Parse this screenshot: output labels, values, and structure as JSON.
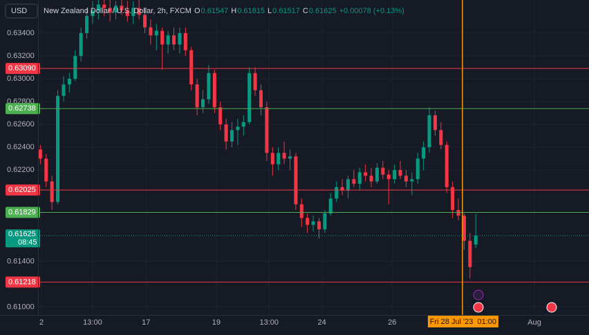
{
  "header": {
    "symbol_button": "USD",
    "title": "New Zealand Dollar / U.S. Dollar, 2h, FXCM",
    "fields": [
      {
        "label": "O",
        "value": 0.61547
      },
      {
        "label": "H",
        "value": 0.61815
      },
      {
        "label": "L",
        "value": 0.61517
      },
      {
        "label": "C",
        "value": 0.61625
      }
    ],
    "change": "+0.00078 (+0.13%)"
  },
  "chart_data": {
    "type": "candlestick",
    "up_color": "#089981",
    "down_color": "#f23645",
    "grid": true,
    "x": [
      0,
      1,
      2,
      3,
      4,
      5,
      6,
      7,
      8,
      9,
      10,
      11,
      12,
      13,
      14,
      15,
      16,
      17,
      18,
      19,
      20,
      21,
      22,
      23,
      24,
      25,
      26,
      27,
      28,
      29,
      30,
      31,
      32,
      33,
      34,
      35,
      36,
      37,
      38,
      39,
      40,
      41,
      42,
      43,
      44,
      45,
      46,
      47,
      48,
      49,
      50,
      51,
      52,
      53,
      54,
      55,
      56,
      57,
      58,
      59,
      60,
      61,
      62,
      63,
      64,
      65,
      66,
      67,
      68,
      69,
      70,
      71,
      72,
      73,
      74,
      75
    ],
    "open": [
      0.6238,
      0.623,
      0.621,
      0.6192,
      0.6285,
      0.6295,
      0.63,
      0.632,
      0.634,
      0.6355,
      0.636,
      0.6365,
      0.6362,
      0.6358,
      0.6364,
      0.636,
      0.6355,
      0.6362,
      0.6356,
      0.6345,
      0.6338,
      0.6342,
      0.633,
      0.6338,
      0.633,
      0.634,
      0.6325,
      0.6295,
      0.6275,
      0.6282,
      0.6305,
      0.6275,
      0.626,
      0.6245,
      0.6255,
      0.6258,
      0.6262,
      0.6305,
      0.629,
      0.6275,
      0.6235,
      0.6225,
      0.6235,
      0.623,
      0.6232,
      0.619,
      0.6178,
      0.6172,
      0.6175,
      0.6168,
      0.6182,
      0.6195,
      0.6205,
      0.6202,
      0.6212,
      0.6208,
      0.6218,
      0.6215,
      0.621,
      0.6222,
      0.6216,
      0.6212,
      0.622,
      0.6215,
      0.621,
      0.6212,
      0.623,
      0.624,
      0.6268,
      0.6255,
      0.6242,
      0.6205,
      0.6185,
      0.618,
      0.6158,
      0.61547
    ],
    "high": [
      0.6242,
      0.6234,
      0.6215,
      0.629,
      0.6302,
      0.6305,
      0.6325,
      0.6345,
      0.6362,
      0.6368,
      0.637,
      0.6372,
      0.637,
      0.6368,
      0.637,
      0.6368,
      0.6368,
      0.637,
      0.6362,
      0.6352,
      0.6348,
      0.6345,
      0.6342,
      0.6345,
      0.6345,
      0.6345,
      0.6328,
      0.63,
      0.629,
      0.6312,
      0.6308,
      0.628,
      0.6265,
      0.6262,
      0.6265,
      0.6268,
      0.631,
      0.631,
      0.6295,
      0.628,
      0.624,
      0.624,
      0.6245,
      0.6238,
      0.6235,
      0.6195,
      0.6182,
      0.618,
      0.6178,
      0.6185,
      0.62,
      0.621,
      0.6212,
      0.6215,
      0.622,
      0.6222,
      0.6225,
      0.6222,
      0.6226,
      0.6228,
      0.622,
      0.6225,
      0.6228,
      0.622,
      0.6218,
      0.6235,
      0.6245,
      0.6275,
      0.6272,
      0.6262,
      0.6245,
      0.621,
      0.6195,
      0.6182,
      0.6165,
      0.61815
    ],
    "low": [
      0.6225,
      0.6205,
      0.6185,
      0.619,
      0.628,
      0.6288,
      0.6298,
      0.6315,
      0.6335,
      0.6348,
      0.6352,
      0.6355,
      0.635,
      0.6352,
      0.6356,
      0.635,
      0.6348,
      0.6352,
      0.634,
      0.633,
      0.6325,
      0.6308,
      0.6322,
      0.6325,
      0.6322,
      0.632,
      0.629,
      0.6268,
      0.627,
      0.6278,
      0.627,
      0.6255,
      0.6238,
      0.624,
      0.6242,
      0.625,
      0.626,
      0.6285,
      0.6268,
      0.6228,
      0.6215,
      0.622,
      0.6225,
      0.622,
      0.6185,
      0.617,
      0.6165,
      0.6166,
      0.616,
      0.6165,
      0.618,
      0.6192,
      0.6198,
      0.6195,
      0.6205,
      0.6202,
      0.621,
      0.6205,
      0.6208,
      0.6212,
      0.619,
      0.6208,
      0.6212,
      0.6205,
      0.6198,
      0.6208,
      0.622,
      0.6235,
      0.625,
      0.6238,
      0.62,
      0.6178,
      0.6176,
      0.615,
      0.6125,
      0.61517
    ],
    "close": [
      0.623,
      0.621,
      0.6192,
      0.6285,
      0.6295,
      0.63,
      0.632,
      0.634,
      0.6355,
      0.636,
      0.6365,
      0.6362,
      0.6358,
      0.6364,
      0.636,
      0.6355,
      0.6362,
      0.6356,
      0.6345,
      0.6338,
      0.6342,
      0.633,
      0.6338,
      0.633,
      0.634,
      0.6325,
      0.6295,
      0.6275,
      0.6282,
      0.6305,
      0.6275,
      0.626,
      0.6245,
      0.6255,
      0.6258,
      0.6262,
      0.6305,
      0.629,
      0.6275,
      0.6235,
      0.6225,
      0.6235,
      0.623,
      0.6232,
      0.619,
      0.6178,
      0.6172,
      0.6175,
      0.6168,
      0.6182,
      0.6195,
      0.6205,
      0.6202,
      0.6212,
      0.6208,
      0.6218,
      0.6215,
      0.621,
      0.6222,
      0.6216,
      0.6212,
      0.622,
      0.6215,
      0.621,
      0.6212,
      0.623,
      0.624,
      0.6268,
      0.6255,
      0.6242,
      0.6205,
      0.6185,
      0.618,
      0.6158,
      0.6135,
      0.61625
    ],
    "xlim": [
      -0.4,
      94.5
    ],
    "ylim": [
      0.6093,
      0.6369
    ],
    "yticks": [
      {
        "value": 0.634,
        "label": "0.63400"
      },
      {
        "value": 0.632,
        "label": "0.63200"
      },
      {
        "value": 0.63,
        "label": "0.63000"
      },
      {
        "value": 0.628,
        "label": "0.62800"
      },
      {
        "value": 0.626,
        "label": "0.62600"
      },
      {
        "value": 0.624,
        "label": "0.62400"
      },
      {
        "value": 0.622,
        "label": "0.62200"
      },
      {
        "value": 0.614,
        "label": "0.61400"
      },
      {
        "value": 0.61,
        "label": "0.61000"
      }
    ],
    "xticks": [
      {
        "value": 0.2,
        "label": "2"
      },
      {
        "value": 9,
        "label": "13:00"
      },
      {
        "value": 18.2,
        "label": "17"
      },
      {
        "value": 30.3,
        "label": "19"
      },
      {
        "value": 39.4,
        "label": "13:00"
      },
      {
        "value": 48.5,
        "label": "24"
      },
      {
        "value": 60.6,
        "label": "26"
      },
      {
        "value": 85.1,
        "label": "Aug"
      }
    ],
    "levels": [
      {
        "value": 0.6309,
        "label": "0.63090",
        "color": "#f23645"
      },
      {
        "value": 0.62738,
        "label": "0.62738",
        "color": "#4caf50"
      },
      {
        "value": 0.62025,
        "label": "0.62025",
        "color": "#f23645"
      },
      {
        "value": 0.61829,
        "label": "0.61829",
        "color": "#4caf50"
      },
      {
        "value": 0.61218,
        "label": "0.61218",
        "color": "#f23645"
      }
    ],
    "last_price": {
      "value": 0.61625,
      "label": "0.61625",
      "countdown": "08:45",
      "color": "#089981"
    },
    "crosshair": {
      "x": 72.7,
      "label": "Fri 28 Jul '23  01:00",
      "color": "#ff9800"
    }
  }
}
